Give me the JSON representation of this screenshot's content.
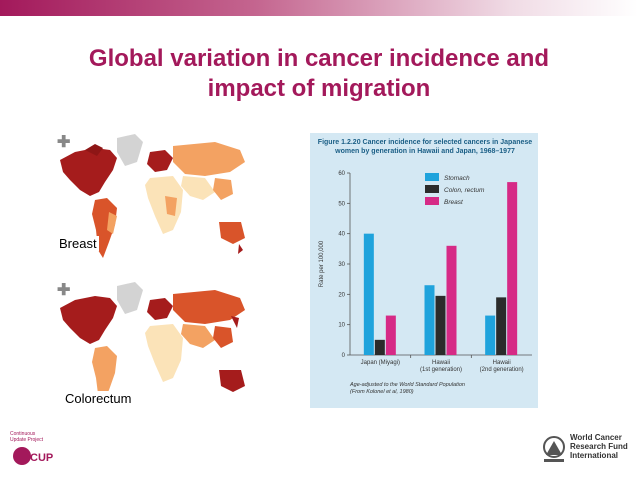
{
  "slide": {
    "title_line1": "Global variation in cancer incidence and",
    "title_line2": "impact of migration"
  },
  "maps": {
    "breast_label": "Breast",
    "colorectum_label": "Colorectum",
    "zoom_icon": "plus-icon",
    "colors": {
      "dark": "#a51c1c",
      "mid": "#d9542a",
      "light": "#f3a262",
      "pale": "#fbe3b8",
      "nodata": "#d3d3d3"
    }
  },
  "figure": {
    "title": "Figure 1.2.20 Cancer incidence for selected cancers in Japanese women by generation in Hawaii and Japan, 1968–1977",
    "note_line1": "Age-adjusted to the World Standard Population",
    "note_line2": "(From Kolonel et al, 1980)"
  },
  "chart_data": {
    "type": "bar",
    "categories": [
      "Japan (Miyagi)",
      "Hawaii (1st generation)",
      "Hawaii (2nd generation)"
    ],
    "category_lines": [
      [
        "Japan (Miyagi)"
      ],
      [
        "Hawaii",
        "(1st generation)"
      ],
      [
        "Hawaii",
        "(2nd generation)"
      ]
    ],
    "series": [
      {
        "name": "Stomach",
        "color": "#1fa3dc",
        "values": [
          40,
          23,
          13
        ]
      },
      {
        "name": "Colon, rectum",
        "color": "#2b2b2b",
        "values": [
          5,
          19.5,
          19
        ]
      },
      {
        "name": "Breast",
        "color": "#d62a86",
        "values": [
          13,
          36,
          57
        ]
      }
    ],
    "ylabel": "Rate per 100,000",
    "ylim": [
      0,
      60
    ],
    "yticks": [
      0,
      10,
      20,
      30,
      40,
      50,
      60
    ],
    "legend_position": "top-right"
  },
  "logos": {
    "left_lines": [
      "Continuous",
      "Update Project",
      "CUP"
    ],
    "right_lines": [
      "World Cancer",
      "Research Fund",
      "International"
    ]
  }
}
